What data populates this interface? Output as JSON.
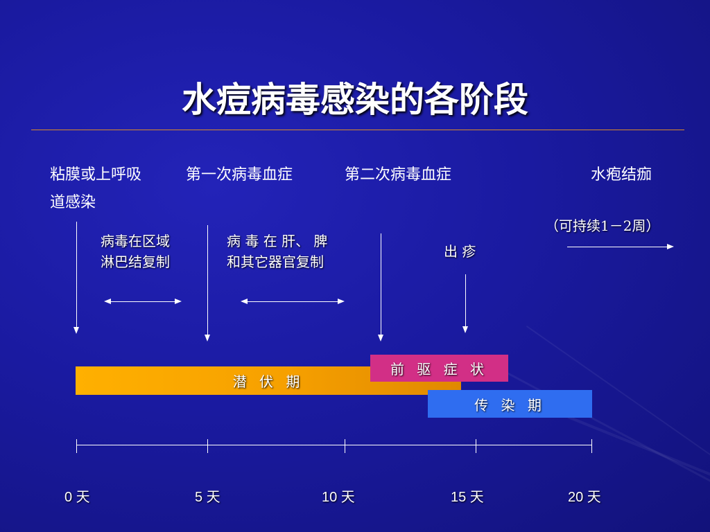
{
  "slide": {
    "title": "水痘病毒感染的各阶段",
    "headers": {
      "mucosa_line1": "粘膜或上呼吸",
      "mucosa_line2": "道感染",
      "viremia1": "第一次病毒血症",
      "viremia2": "第二次病毒血症",
      "crusting": "水疱结痂"
    },
    "notes": {
      "lymph_line1": "病毒在区域",
      "lymph_line2": "淋巴结复制",
      "organ_line1": "病 毒 在 肝、 脾",
      "organ_line2": "和其它器官复制",
      "rash": "出 疹",
      "duration": "（可持续1－2周）"
    },
    "phases": {
      "incubation": "潜 伏 期",
      "prodrome": "前 驱 症 状",
      "contagious": "传 染 期"
    },
    "timeline": {
      "days": [
        "0 天",
        "5 天",
        "10 天",
        "15  天",
        "20 天"
      ]
    },
    "colors": {
      "background": "#1a1aa0",
      "incubation": "#f6a000",
      "prodrome": "#d22f86",
      "contagious": "#2f6df0",
      "title_rule": "#d98a2a"
    }
  }
}
